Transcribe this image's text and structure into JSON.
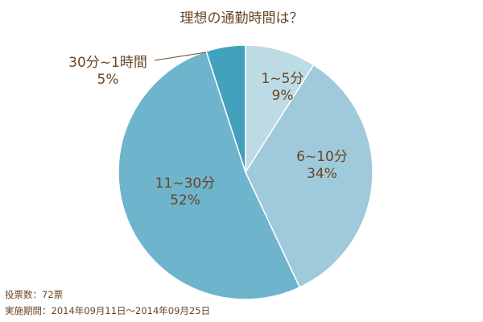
{
  "title": "理想の通勤時間は？",
  "chart_data": {
    "type": "pie",
    "title": "理想の通勤時間は？",
    "categories": [
      "1~5分",
      "6~10分",
      "11~30分",
      "30分~1時間"
    ],
    "values": [
      9,
      34,
      52,
      5
    ],
    "unit": "%",
    "colors": [
      "#bcdbe5",
      "#9ecadb",
      "#6fb4cd",
      "#42a2bd"
    ],
    "start_angle": "12 o'clock, clockwise",
    "labels": [
      {
        "category": "1~5分",
        "percent": "9%"
      },
      {
        "category": "6~10分",
        "percent": "34%"
      },
      {
        "category": "11~30分",
        "percent": "52%"
      },
      {
        "category": "30分~1時間",
        "percent": "5%"
      }
    ]
  },
  "footer": {
    "votes": "投票数：72票",
    "period": "実施期間：2014年09月11日～2014年09月25日"
  },
  "style": {
    "text_color": "#6b4524",
    "slice_border": "#ffffff"
  }
}
